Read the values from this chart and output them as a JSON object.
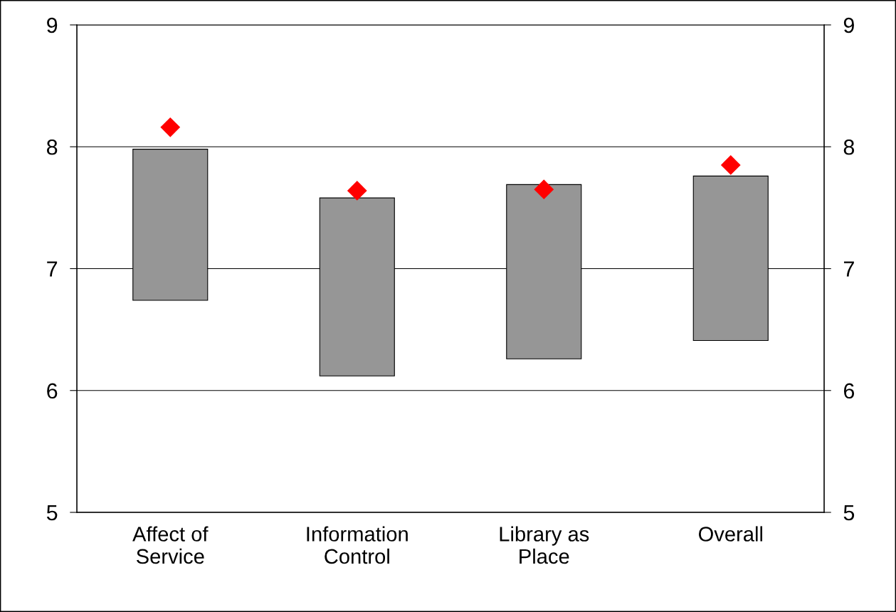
{
  "chart_data": {
    "type": "bar",
    "categories": [
      "Affect of\nService",
      "Information\nControl",
      "Library as\nPlace",
      "Overall"
    ],
    "series": [
      {
        "color": "#969696",
        "base": [
          6.74,
          6.12,
          6.26,
          6.41
        ],
        "values": [
          1.24,
          1.46,
          1.43,
          1.35
        ]
      },
      {
        "type": "scatter",
        "color": "#ff0000",
        "marker": "diamond",
        "x": [
          "Affect of\nService",
          "Information\nControl",
          "Library as\nPlace",
          "Overall"
        ],
        "values": [
          8.16,
          7.64,
          7.65,
          7.85
        ]
      }
    ],
    "ylim": [
      5,
      9
    ],
    "yticks": [
      5,
      6,
      7,
      8,
      9
    ],
    "y2lim": [
      5,
      9
    ],
    "y2ticks": [
      5,
      6,
      7,
      8,
      9
    ],
    "grid": "y",
    "legend": false
  }
}
